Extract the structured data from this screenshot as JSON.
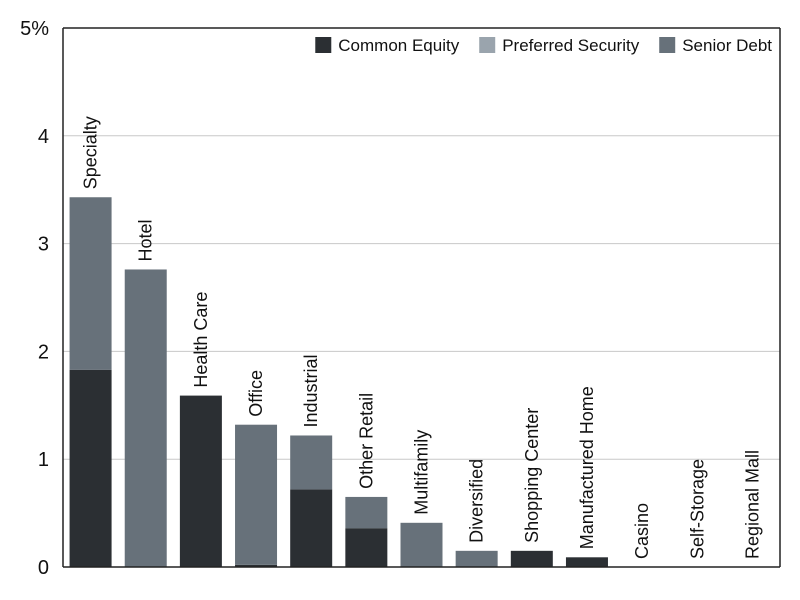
{
  "chart_data": {
    "type": "bar",
    "stacked": true,
    "categories": [
      "Specialty",
      "Hotel",
      "Health Care",
      "Office",
      "Industrial",
      "Other Retail",
      "Multifamily",
      "Diversified",
      "Shopping Center",
      "Manufactured Home",
      "Casino",
      "Self-Storage",
      "Regional Mall"
    ],
    "series": [
      {
        "name": "Common Equity",
        "color": "#2b2f33",
        "values": [
          1.83,
          0,
          1.59,
          0.02,
          0.72,
          0.36,
          0,
          0,
          0.15,
          0.09,
          0,
          0,
          0
        ]
      },
      {
        "name": "Preferred Security",
        "color": "#9aa4ad",
        "values": [
          0,
          0,
          0,
          0,
          0,
          0,
          0,
          0,
          0,
          0,
          0,
          0,
          0
        ]
      },
      {
        "name": "Senior Debt",
        "color": "#67717a",
        "values": [
          1.6,
          2.76,
          0,
          1.3,
          0.5,
          0.29,
          0.41,
          0.15,
          0,
          0,
          0,
          0,
          0
        ]
      }
    ],
    "yticks": [
      "0",
      "1",
      "2",
      "3",
      "4",
      "5%"
    ],
    "ylim": [
      0,
      5
    ],
    "grid": true,
    "legend": "top-right"
  }
}
